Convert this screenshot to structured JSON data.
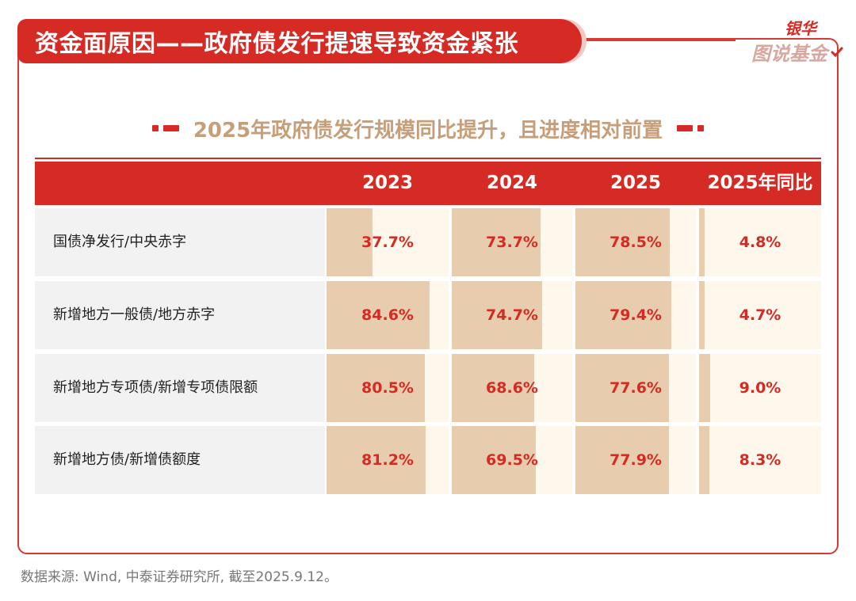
{
  "header": {
    "title": "资金面原因——政府债发行提速导致资金紧张"
  },
  "logo": {
    "top": "银华",
    "bottom": "图说基金"
  },
  "colors": {
    "brand_red": "#d62a24",
    "bar_fill": "#e7ccad",
    "cell_bg": "#fdf7ec",
    "subtitle": "#c69f7a"
  },
  "chart_data": {
    "type": "table",
    "title": "2025年政府债发行规模同比提升，且进度相对前置",
    "columns": [
      "2023",
      "2024",
      "2025",
      "2025年同比"
    ],
    "rows": [
      {
        "label": "国债净发行/中央赤字",
        "values": [
          "37.7%",
          "73.7%",
          "78.5%",
          "4.8%"
        ],
        "numeric": [
          37.7,
          73.7,
          78.5,
          4.8
        ]
      },
      {
        "label": "新增地方一般债/地方赤字",
        "values": [
          "84.6%",
          "74.7%",
          "79.4%",
          "4.7%"
        ],
        "numeric": [
          84.6,
          74.7,
          79.4,
          4.7
        ]
      },
      {
        "label": "新增地方专项债/新增专项债限额",
        "values": [
          "80.5%",
          "68.6%",
          "77.6%",
          "9.0%"
        ],
        "numeric": [
          80.5,
          68.6,
          77.6,
          9.0
        ]
      },
      {
        "label": "新增地方债/新增债额度",
        "values": [
          "81.2%",
          "69.5%",
          "77.9%",
          "8.3%"
        ],
        "numeric": [
          81.2,
          69.5,
          77.9,
          8.3
        ]
      }
    ]
  },
  "source": "数据来源: Wind, 中泰证券研究所, 截至2025.9.12。"
}
